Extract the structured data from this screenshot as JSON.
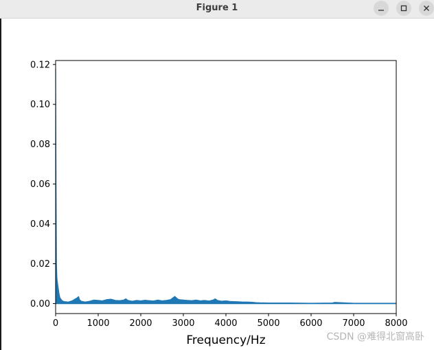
{
  "window": {
    "title": "Figure 1",
    "controls": [
      {
        "name": "minimize-button",
        "icon": "minimize-icon"
      },
      {
        "name": "maximize-button",
        "icon": "maximize-icon"
      },
      {
        "name": "close-button",
        "icon": "close-icon"
      }
    ]
  },
  "chart_data": {
    "type": "line",
    "title": "",
    "xlabel": "Frequency/Hz",
    "ylabel": "",
    "xlim": [
      0,
      8000
    ],
    "ylim": [
      -0.005,
      0.122
    ],
    "xticks": [
      0,
      1000,
      2000,
      3000,
      4000,
      5000,
      6000,
      7000,
      8000
    ],
    "xtick_labels": [
      "0",
      "1000",
      "2000",
      "3000",
      "4000",
      "5000",
      "6000",
      "7000",
      "8000"
    ],
    "yticks": [
      0.0,
      0.02,
      0.04,
      0.06,
      0.08,
      0.1,
      0.12
    ],
    "ytick_labels": [
      "0.00",
      "0.02",
      "0.04",
      "0.06",
      "0.08",
      "0.10",
      "0.12"
    ],
    "grid": false,
    "color": "#1f77b4",
    "series": [
      {
        "x": [
          0,
          10,
          20,
          30,
          40,
          60,
          80,
          100,
          150,
          200,
          300,
          400,
          450,
          500,
          540,
          560,
          600,
          700,
          800,
          900,
          1000,
          1100,
          1200,
          1300,
          1400,
          1500,
          1600,
          1650,
          1700,
          1800,
          1900,
          2000,
          2100,
          2200,
          2300,
          2400,
          2500,
          2600,
          2700,
          2750,
          2800,
          2850,
          2900,
          3000,
          3100,
          3200,
          3300,
          3400,
          3500,
          3600,
          3700,
          3750,
          3800,
          3900,
          4000,
          4100,
          4200,
          4300,
          4400,
          4500,
          4600,
          4700,
          4800,
          5000,
          5500,
          6000,
          6500,
          6550,
          7000,
          7500,
          8000
        ],
        "y": [
          0.118,
          0.06,
          0.02,
          0.013,
          0.011,
          0.008,
          0.005,
          0.003,
          0.0015,
          0.001,
          0.0008,
          0.0015,
          0.0022,
          0.0028,
          0.0035,
          0.002,
          0.0012,
          0.0008,
          0.0012,
          0.0018,
          0.0016,
          0.0014,
          0.002,
          0.0022,
          0.0016,
          0.0015,
          0.0018,
          0.0024,
          0.0016,
          0.0012,
          0.0016,
          0.0014,
          0.0017,
          0.0015,
          0.0013,
          0.0018,
          0.0014,
          0.0016,
          0.002,
          0.0028,
          0.0036,
          0.0026,
          0.002,
          0.0018,
          0.0016,
          0.0015,
          0.0018,
          0.0014,
          0.0016,
          0.0013,
          0.0018,
          0.0024,
          0.0016,
          0.0012,
          0.0014,
          0.0011,
          0.001,
          0.0009,
          0.0008,
          0.0008,
          0.0007,
          0.0005,
          0.0004,
          0.0003,
          0.0003,
          0.0002,
          0.0003,
          0.0006,
          0.0002,
          0.0002,
          0.0002
        ]
      }
    ]
  },
  "watermark": "CSDN @难得北窗高卧"
}
